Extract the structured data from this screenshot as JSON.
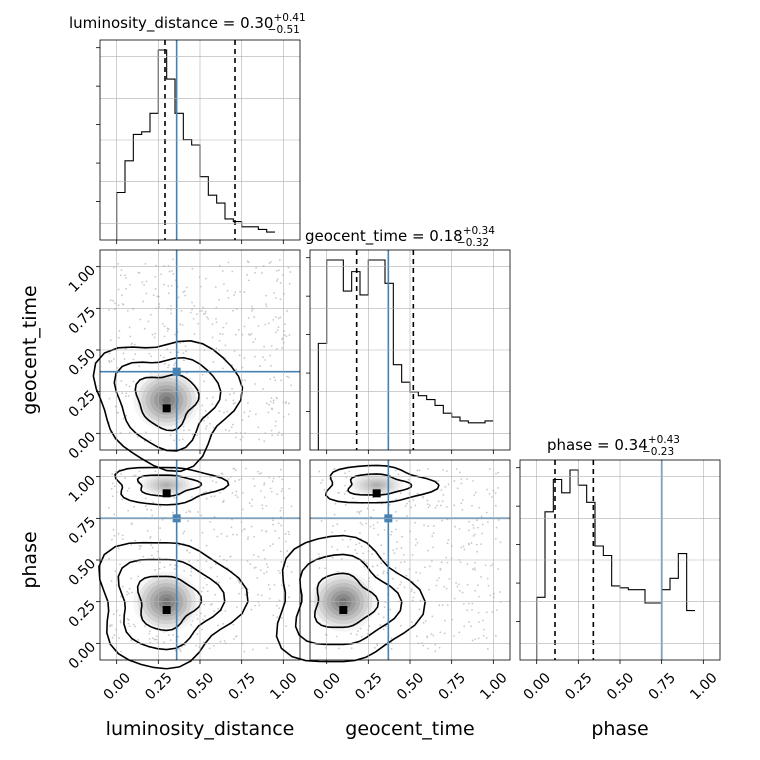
{
  "chart_data": {
    "type": "corner",
    "params": [
      "luminosity_distance",
      "geocent_time",
      "phase"
    ],
    "truth_color": "#4682b4",
    "truths": [
      0.36,
      0.37,
      0.75
    ],
    "tick_labels": [
      "0.00",
      "0.25",
      "0.50",
      "0.75",
      "1.00"
    ],
    "axis_range": [
      -0.1,
      1.1
    ],
    "grid": true,
    "titles": [
      {
        "name": "luminosity_distance",
        "median": "0.30",
        "plus": "+0.41",
        "minus": "−0.51"
      },
      {
        "name": "geocent_time",
        "median": "0.18",
        "plus": "+0.34",
        "minus": "−0.32"
      },
      {
        "name": "phase",
        "median": "0.34",
        "plus": "+0.43",
        "minus": "−0.23"
      }
    ],
    "quantiles": [
      [
        0.29,
        0.71
      ],
      [
        0.18,
        0.52
      ],
      [
        0.11,
        0.34
      ]
    ],
    "histograms": [
      {
        "param": "luminosity_distance",
        "bin_start": 0.0,
        "bin_width": 0.05,
        "counts": [
          18,
          30,
          40,
          41,
          48,
          72,
          61,
          48,
          38,
          36,
          24,
          17,
          14,
          8,
          7,
          5,
          5,
          4,
          3
        ]
      },
      {
        "param": "geocent_time",
        "bin_start": -0.05,
        "bin_width": 0.05,
        "counts": [
          55,
          98,
          98,
          82,
          92,
          80,
          98,
          98,
          86,
          44,
          35,
          30,
          28,
          26,
          23,
          19,
          17,
          15,
          14,
          14,
          15
        ]
      },
      {
        "param": "phase",
        "bin_start": 0.0,
        "bin_width": 0.05,
        "counts": [
          33,
          78,
          95,
          88,
          100,
          92,
          83,
          60,
          55,
          39,
          38,
          37,
          37,
          30,
          30,
          37,
          43,
          56,
          26
        ]
      }
    ],
    "scatter_density": [
      {
        "x": "luminosity_distance",
        "y": "geocent_time",
        "peaks": [
          [
            0.3,
            0.2
          ]
        ]
      },
      {
        "x": "luminosity_distance",
        "y": "phase",
        "peaks": [
          [
            0.3,
            0.25
          ],
          [
            0.3,
            0.95
          ]
        ]
      },
      {
        "x": "geocent_time",
        "y": "phase",
        "peaks": [
          [
            0.1,
            0.25
          ],
          [
            0.3,
            0.95
          ]
        ]
      }
    ]
  }
}
